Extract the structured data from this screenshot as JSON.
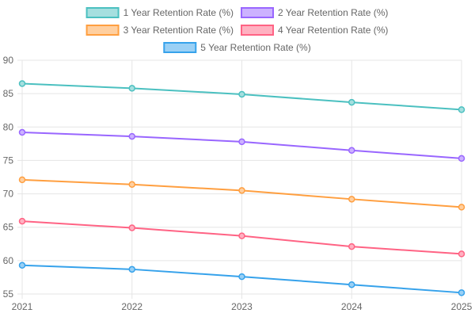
{
  "chart_data": {
    "type": "line",
    "x": [
      "2021",
      "2022",
      "2023",
      "2024",
      "2025"
    ],
    "series": [
      {
        "name": "1 Year Retention Rate (%)",
        "values": [
          86.5,
          85.8,
          84.9,
          83.7,
          82.6
        ],
        "color": "#4bc0c0",
        "fill": "#a5dfdf"
      },
      {
        "name": "2 Year Retention Rate (%)",
        "values": [
          79.2,
          78.6,
          77.8,
          76.5,
          75.3
        ],
        "color": "#9966ff",
        "fill": "#ccb2ff"
      },
      {
        "name": "3 Year Retention Rate (%)",
        "values": [
          72.1,
          71.4,
          70.5,
          69.2,
          68.0
        ],
        "color": "#ff9f40",
        "fill": "#ffcf9f"
      },
      {
        "name": "4 Year Retention Rate (%)",
        "values": [
          65.9,
          64.9,
          63.7,
          62.1,
          61.0
        ],
        "color": "#ff6384",
        "fill": "#ffb1c1"
      },
      {
        "name": "5 Year Retention Rate (%)",
        "values": [
          59.3,
          58.7,
          57.6,
          56.4,
          55.2
        ],
        "color": "#36a2eb",
        "fill": "#9ad0f5"
      }
    ],
    "ylim": [
      55,
      90
    ],
    "yticks": [
      "55",
      "60",
      "65",
      "70",
      "75",
      "80",
      "85",
      "90"
    ],
    "grid": true,
    "legend_position": "top"
  }
}
